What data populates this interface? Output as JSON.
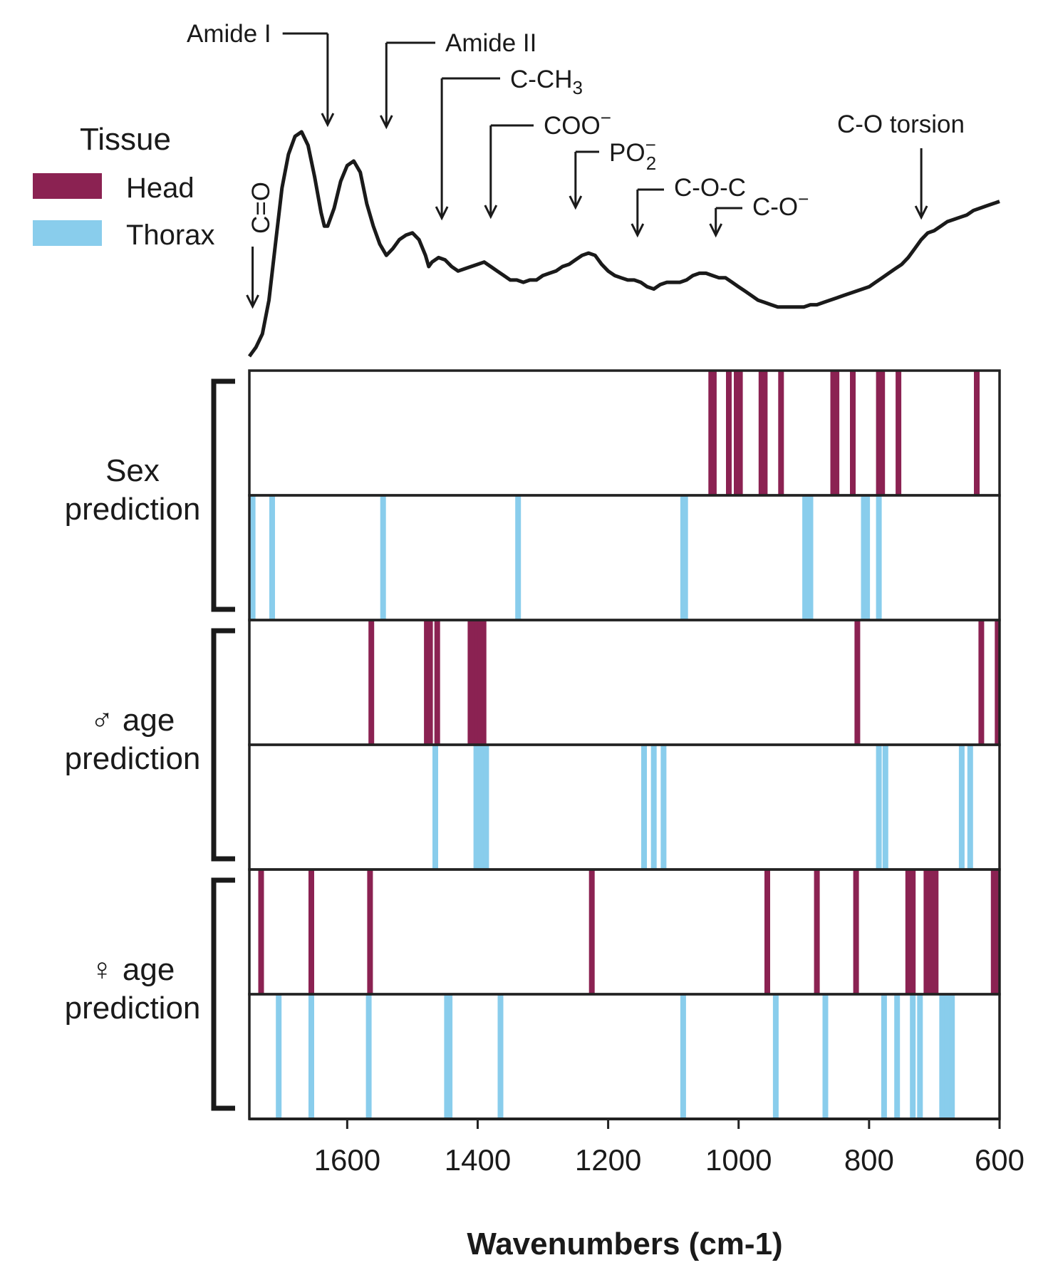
{
  "chart_data": {
    "type": "line",
    "xlabel": "Wavenumbers (cm-1)",
    "xlim": [
      1750,
      600
    ],
    "x_reversed": true,
    "xticks": [
      1600,
      1400,
      1200,
      1000,
      800,
      600
    ],
    "colors": {
      "head": "#8b2252",
      "thorax": "#89cdec",
      "spectrum": "#1a1a1a"
    },
    "legend": {
      "title": "Tissue",
      "placement": "top-left",
      "entries": [
        {
          "key": "head",
          "label": "Head"
        },
        {
          "key": "thorax",
          "label": "Thorax"
        }
      ]
    },
    "spectrum": {
      "x": [
        1750,
        1745,
        1740,
        1730,
        1720,
        1710,
        1700,
        1690,
        1680,
        1670,
        1660,
        1650,
        1640,
        1635,
        1630,
        1620,
        1610,
        1600,
        1590,
        1580,
        1570,
        1560,
        1550,
        1540,
        1530,
        1520,
        1510,
        1500,
        1490,
        1480,
        1475,
        1470,
        1460,
        1450,
        1440,
        1430,
        1420,
        1410,
        1400,
        1390,
        1380,
        1370,
        1360,
        1350,
        1340,
        1330,
        1320,
        1310,
        1300,
        1290,
        1280,
        1270,
        1260,
        1250,
        1240,
        1230,
        1220,
        1210,
        1200,
        1190,
        1180,
        1170,
        1160,
        1150,
        1140,
        1130,
        1120,
        1110,
        1100,
        1090,
        1080,
        1070,
        1060,
        1050,
        1040,
        1030,
        1020,
        1010,
        1000,
        990,
        980,
        970,
        960,
        950,
        940,
        930,
        920,
        910,
        900,
        890,
        880,
        870,
        860,
        850,
        840,
        830,
        820,
        810,
        800,
        790,
        780,
        770,
        760,
        750,
        740,
        730,
        720,
        710,
        700,
        690,
        680,
        670,
        660,
        650,
        640,
        630,
        620,
        610,
        600
      ],
      "y": [
        0.0,
        0.02,
        0.04,
        0.1,
        0.25,
        0.5,
        0.75,
        0.9,
        0.98,
        1.0,
        0.94,
        0.8,
        0.64,
        0.58,
        0.58,
        0.66,
        0.78,
        0.85,
        0.87,
        0.82,
        0.68,
        0.58,
        0.5,
        0.45,
        0.48,
        0.52,
        0.54,
        0.55,
        0.52,
        0.45,
        0.4,
        0.42,
        0.44,
        0.43,
        0.4,
        0.38,
        0.39,
        0.4,
        0.41,
        0.42,
        0.4,
        0.38,
        0.36,
        0.34,
        0.34,
        0.33,
        0.34,
        0.34,
        0.36,
        0.37,
        0.38,
        0.4,
        0.41,
        0.43,
        0.45,
        0.46,
        0.45,
        0.41,
        0.38,
        0.36,
        0.35,
        0.34,
        0.34,
        0.33,
        0.31,
        0.3,
        0.32,
        0.33,
        0.33,
        0.33,
        0.34,
        0.36,
        0.37,
        0.37,
        0.36,
        0.35,
        0.35,
        0.33,
        0.31,
        0.29,
        0.27,
        0.25,
        0.24,
        0.23,
        0.22,
        0.22,
        0.22,
        0.22,
        0.22,
        0.23,
        0.23,
        0.24,
        0.25,
        0.26,
        0.27,
        0.28,
        0.29,
        0.3,
        0.31,
        0.33,
        0.35,
        0.37,
        0.39,
        0.41,
        0.44,
        0.48,
        0.52,
        0.55,
        0.56,
        0.58,
        0.6,
        0.61,
        0.62,
        0.63,
        0.65,
        0.66,
        0.67,
        0.68,
        0.69
      ]
    },
    "annotations": [
      {
        "label": "C=O",
        "x": 1745,
        "rotated": true
      },
      {
        "label": "Amide I",
        "x": 1630
      },
      {
        "label": "Amide II",
        "x": 1540
      },
      {
        "label": "C-CH3",
        "base": "C-CH",
        "sub": "3",
        "x": 1455
      },
      {
        "label": "COO−",
        "base": "COO",
        "sup": "−",
        "x": 1380
      },
      {
        "label": "PO2−",
        "base": "PO",
        "sub": "2",
        "sup": "−",
        "x": 1250
      },
      {
        "label": "C-O-C",
        "x": 1155
      },
      {
        "label": "C-O−",
        "base": "C-O",
        "sup": "−",
        "x": 1035
      },
      {
        "label": "C-O torsion",
        "x": 720
      }
    ],
    "panels": [
      {
        "label_lines": [
          "Sex",
          "prediction"
        ],
        "head": [
          1042,
          1038,
          1015,
          1003,
          998,
          965,
          960,
          935,
          855,
          850,
          825,
          785,
          780,
          755,
          635
        ],
        "thorax": [
          1745,
          1715,
          1545,
          1338,
          1085,
          1082,
          898,
          890,
          808,
          803,
          785
        ]
      },
      {
        "label_lines": [
          "♂ age",
          "prediction"
        ],
        "head": [
          1563,
          1478,
          1473,
          1462,
          1411,
          1406,
          1401,
          1396,
          1391,
          818,
          628,
          603
        ],
        "thorax": [
          1465,
          1402,
          1397,
          1392,
          1387,
          1145,
          1130,
          1115,
          785,
          775,
          658,
          645
        ]
      },
      {
        "label_lines": [
          "♀ age",
          "prediction"
        ],
        "head": [
          1732,
          1655,
          1565,
          1225,
          956,
          880,
          820,
          740,
          733,
          712,
          704,
          698,
          609,
          603
        ],
        "thorax": [
          1705,
          1655,
          1567,
          1447,
          1443,
          1365,
          1085,
          943,
          867,
          777,
          757,
          733,
          722,
          688,
          680,
          673
        ]
      }
    ]
  }
}
